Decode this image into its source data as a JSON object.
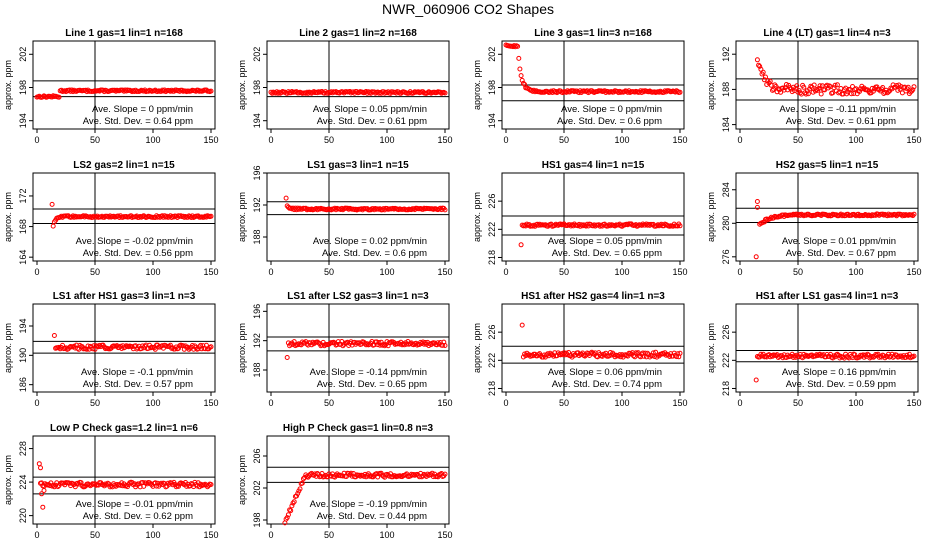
{
  "figure": {
    "title": "NWR_060906  CO2 Shapes"
  },
  "chart_data": [
    {
      "type": "scatter",
      "title": "Line 1 gas=1 lin=1 n=168",
      "ylabel": "approx. ppm",
      "xlim": [
        0,
        150
      ],
      "ylim": [
        193.0,
        203.6
      ],
      "xticks": [
        "0",
        "50",
        "100",
        "150"
      ],
      "yticks": [
        {
          "v": 194,
          "t": "194"
        },
        {
          "v": 198,
          "t": "198"
        },
        {
          "v": 202,
          "t": "202"
        }
      ],
      "hlines": [
        196.9,
        198.8
      ],
      "vline": 50,
      "shape": "step",
      "params": {
        "a": 196.9,
        "b": 197.6,
        "t0": 20,
        "noise": 0.1,
        "start": 0,
        "step": 1
      },
      "slope": "Ave. Slope =  0  ppm/min",
      "sd": "Ave. Std. Dev. =  0.64  ppm",
      "series": [
        {
          "color": "#ff0000"
        }
      ]
    },
    {
      "type": "scatter",
      "title": "Line 2 gas=1 lin=2 n=168",
      "ylabel": "approx. ppm",
      "xlim": [
        0,
        150
      ],
      "ylim": [
        193.0,
        203.6
      ],
      "xticks": [
        "0",
        "50",
        "100",
        "150"
      ],
      "yticks": [
        {
          "v": 194,
          "t": "194"
        },
        {
          "v": 198,
          "t": "198"
        },
        {
          "v": 202,
          "t": "202"
        }
      ],
      "hlines": [
        196.9,
        198.7
      ],
      "vline": 50,
      "shape": "flat",
      "params": {
        "a": 197.4,
        "noise": 0.12,
        "start": 0,
        "step": 1
      },
      "slope": "Ave. Slope =  0.05  ppm/min",
      "sd": "Ave. Std. Dev. =  0.61  ppm",
      "series": [
        {
          "color": "#ff0000"
        }
      ]
    },
    {
      "type": "scatter",
      "title": "Line 3 gas=1 lin=3 n=168",
      "ylabel": "approx. ppm",
      "xlim": [
        0,
        150
      ],
      "ylim": [
        193.0,
        203.6
      ],
      "xticks": [
        "0",
        "50",
        "100",
        "150"
      ],
      "yticks": [
        {
          "v": 194,
          "t": "194"
        },
        {
          "v": 198,
          "t": "198"
        },
        {
          "v": 202,
          "t": "202"
        }
      ],
      "hlines": [
        196.4,
        198.3
      ],
      "vline": 50,
      "shape": "decay",
      "params": {
        "a": 197.5,
        "b": 203.0,
        "t0": 10,
        "tau": 3,
        "noise": 0.12,
        "start": 0,
        "step": 1
      },
      "slope": "Ave. Slope =  0  ppm/min",
      "sd": "Ave. Std. Dev. =  0.6  ppm",
      "series": [
        {
          "color": "#ff0000"
        }
      ]
    },
    {
      "type": "scatter",
      "title": "Line 4 (LT) gas=1 lin=4 n=3",
      "ylabel": "approx. ppm",
      "xlim": [
        0,
        150
      ],
      "ylim": [
        183.5,
        193.5
      ],
      "xticks": [
        "0",
        "50",
        "100",
        "150"
      ],
      "yticks": [
        {
          "v": 184,
          "t": "184"
        },
        {
          "v": 188,
          "t": "188"
        },
        {
          "v": 192,
          "t": "192"
        }
      ],
      "hlines": [
        186.8,
        189.2
      ],
      "vline": 50,
      "shape": "decay",
      "params": {
        "a": 188.0,
        "b": 191.5,
        "t0": 15,
        "tau": 6,
        "noise": 0.55,
        "start": 15,
        "step": 1
      },
      "slope": "Ave. Slope = -0.11  ppm/min",
      "sd": "Ave. Std. Dev. =  0.61  ppm",
      "series": [
        {
          "color": "#ff0000"
        }
      ]
    },
    {
      "type": "scatter",
      "title": "LS2 gas=2 lin=1 n=15",
      "ylabel": "approx. ppm",
      "xlim": [
        0,
        150
      ],
      "ylim": [
        163.5,
        175.0
      ],
      "xticks": [
        "0",
        "50",
        "100",
        "150"
      ],
      "yticks": [
        {
          "v": 164,
          "t": "164"
        },
        {
          "v": 168,
          "t": "168"
        },
        {
          "v": 172,
          "t": "172"
        }
      ],
      "hlines": [
        168.4,
        170.3
      ],
      "vline": 50,
      "shape": "rise",
      "params": {
        "a": 169.3,
        "b": 168.0,
        "t0": 14,
        "tau": 2,
        "noise": 0.12,
        "start": 14,
        "step": 1,
        "first": 170.9
      },
      "slope": "Ave. Slope = -0.02  ppm/min",
      "sd": "Ave. Std. Dev. =  0.56  ppm",
      "series": [
        {
          "color": "#ff0000"
        }
      ]
    },
    {
      "type": "scatter",
      "title": "LS1 gas=3 lin=1 n=15",
      "ylabel": "approx. ppm",
      "xlim": [
        0,
        150
      ],
      "ylim": [
        185.0,
        196.0
      ],
      "xticks": [
        "0",
        "50",
        "100",
        "150"
      ],
      "yticks": [
        {
          "v": 188,
          "t": "188"
        },
        {
          "v": 192,
          "t": "192"
        },
        {
          "v": 196,
          "t": "196"
        }
      ],
      "hlines": [
        190.8,
        192.4
      ],
      "vline": 50,
      "shape": "decay",
      "params": {
        "a": 191.5,
        "b": 196.2,
        "t0": 12,
        "tau": 0.8,
        "noise": 0.12,
        "start": 12,
        "step": 1
      },
      "slope": "Ave. Slope =  0.02  ppm/min",
      "sd": "Ave. Std. Dev. =  0.6  ppm",
      "series": [
        {
          "color": "#ff0000"
        }
      ]
    },
    {
      "type": "scatter",
      "title": "HS1 gas=4 lin=1 n=15",
      "ylabel": "approx. ppm",
      "xlim": [
        0,
        150
      ],
      "ylim": [
        217.5,
        230.0
      ],
      "xticks": [
        "0",
        "50",
        "100",
        "150"
      ],
      "yticks": [
        {
          "v": 218,
          "t": "218"
        },
        {
          "v": 222,
          "t": "222"
        },
        {
          "v": 226,
          "t": "226"
        }
      ],
      "hlines": [
        221.2,
        223.9
      ],
      "vline": 50,
      "shape": "flat",
      "params": {
        "a": 222.6,
        "noise": 0.18,
        "start": 14,
        "step": 1,
        "first": 219.8
      },
      "slope": "Ave. Slope =  0.05  ppm/min",
      "sd": "Ave. Std. Dev. =  0.65  ppm",
      "series": [
        {
          "color": "#ff0000"
        }
      ]
    },
    {
      "type": "scatter",
      "title": "HS2 gas=5 lin=1 n=15",
      "ylabel": "approx. ppm",
      "xlim": [
        0,
        150
      ],
      "ylim": [
        275.5,
        286.0
      ],
      "xticks": [
        "0",
        "50",
        "100",
        "150"
      ],
      "yticks": [
        {
          "v": 276,
          "t": "276"
        },
        {
          "v": 280,
          "t": "280"
        },
        {
          "v": 284,
          "t": "284"
        }
      ],
      "hlines": [
        280.1,
        281.8
      ],
      "vline": 50,
      "shape": "rise",
      "params": {
        "a": 281.0,
        "b": 279.8,
        "t0": 17,
        "tau": 8,
        "noise": 0.12,
        "start": 17,
        "step": 1,
        "extra": [
          [
            14,
            276.0
          ],
          [
            15,
            282.6
          ],
          [
            15,
            281.9
          ]
        ]
      },
      "slope": "Ave. Slope =  0.01  ppm/min",
      "sd": "Ave. Std. Dev. =  0.67  ppm",
      "series": [
        {
          "color": "#ff0000"
        }
      ]
    },
    {
      "type": "scatter",
      "title": "LS1 after HS1 gas=3 lin=1 n=3",
      "ylabel": "approx. ppm",
      "xlim": [
        0,
        150
      ],
      "ylim": [
        185.0,
        197.0
      ],
      "xticks": [
        "0",
        "50",
        "100",
        "150"
      ],
      "yticks": [
        {
          "v": 186,
          "t": "186"
        },
        {
          "v": 190,
          "t": "190"
        },
        {
          "v": 194,
          "t": "194"
        }
      ],
      "hlines": [
        190.3,
        191.9
      ],
      "vline": 50,
      "shape": "flat",
      "params": {
        "a": 191.1,
        "noise": 0.3,
        "start": 16,
        "step": 1,
        "first": 192.7
      },
      "slope": "Ave. Slope = -0.1  ppm/min",
      "sd": "Ave. Std. Dev. =  0.57  ppm",
      "series": [
        {
          "color": "#ff0000"
        }
      ]
    },
    {
      "type": "scatter",
      "title": "LS1 after LS2 gas=3 lin=1 n=3",
      "ylabel": "approx. ppm",
      "xlim": [
        0,
        150
      ],
      "ylim": [
        185.0,
        197.0
      ],
      "xticks": [
        "0",
        "50",
        "100",
        "150"
      ],
      "yticks": [
        {
          "v": 188,
          "t": "188"
        },
        {
          "v": 192,
          "t": "192"
        },
        {
          "v": 196,
          "t": "196"
        }
      ],
      "hlines": [
        190.6,
        192.5
      ],
      "vline": 50,
      "shape": "flat",
      "params": {
        "a": 191.6,
        "noise": 0.3,
        "start": 15,
        "step": 1,
        "first": 189.7
      },
      "slope": "Ave. Slope = -0.14  ppm/min",
      "sd": "Ave. Std. Dev. =  0.65  ppm",
      "series": [
        {
          "color": "#ff0000"
        }
      ]
    },
    {
      "type": "scatter",
      "title": "HS1 after HS2 gas=4 lin=1 n=3",
      "ylabel": "approx. ppm",
      "xlim": [
        0,
        150
      ],
      "ylim": [
        217.5,
        230.0
      ],
      "xticks": [
        "0",
        "50",
        "100",
        "150"
      ],
      "yticks": [
        {
          "v": 218,
          "t": "218"
        },
        {
          "v": 222,
          "t": "222"
        },
        {
          "v": 226,
          "t": "226"
        }
      ],
      "hlines": [
        221.6,
        224.0
      ],
      "vline": 50,
      "shape": "flat",
      "params": {
        "a": 222.8,
        "noise": 0.35,
        "start": 15,
        "step": 1,
        "first": 227.0
      },
      "slope": "Ave. Slope =  0.06  ppm/min",
      "sd": "Ave. Std. Dev. =  0.74  ppm",
      "series": [
        {
          "color": "#ff0000"
        }
      ]
    },
    {
      "type": "scatter",
      "title": "HS1 after LS1 gas=4 lin=1 n=3",
      "ylabel": "approx. ppm",
      "xlim": [
        0,
        150
      ],
      "ylim": [
        217.5,
        230.0
      ],
      "xticks": [
        "0",
        "50",
        "100",
        "150"
      ],
      "yticks": [
        {
          "v": 218,
          "t": "218"
        },
        {
          "v": 222,
          "t": "222"
        },
        {
          "v": 226,
          "t": "226"
        }
      ],
      "hlines": [
        221.8,
        223.4
      ],
      "vline": 50,
      "shape": "flat",
      "params": {
        "a": 222.6,
        "noise": 0.28,
        "start": 15,
        "step": 1,
        "first": 219.2
      },
      "slope": "Ave. Slope =  0.16  ppm/min",
      "sd": "Ave. Std. Dev. =  0.59  ppm",
      "series": [
        {
          "color": "#ff0000"
        }
      ]
    },
    {
      "type": "scatter",
      "title": "Low P Check gas=1.2 lin=1 n=6",
      "ylabel": "approx. ppm",
      "xlim": [
        0,
        150
      ],
      "ylim": [
        219.0,
        229.5
      ],
      "xticks": [
        "0",
        "50",
        "100",
        "150"
      ],
      "yticks": [
        {
          "v": 220,
          "t": "220"
        },
        {
          "v": 224,
          "t": "224"
        },
        {
          "v": 228,
          "t": "228"
        }
      ],
      "hlines": [
        222.6,
        224.6
      ],
      "vline": 50,
      "shape": "flat",
      "params": {
        "a": 223.7,
        "noise": 0.28,
        "start": 3,
        "step": 1,
        "extra": [
          [
            2,
            226.2
          ],
          [
            3,
            225.7
          ],
          [
            5,
            221.0
          ],
          [
            4,
            222.6
          ],
          [
            6,
            223.0
          ]
        ]
      },
      "slope": "Ave. Slope = -0.01  ppm/min",
      "sd": "Ave. Std. Dev. =  0.62  ppm",
      "series": [
        {
          "color": "#ff0000"
        }
      ]
    },
    {
      "type": "scatter",
      "title": "High P Check gas=1 lin=0.8 n=3",
      "ylabel": "approx. ppm",
      "xlim": [
        0,
        150
      ],
      "ylim": [
        197.5,
        208.5
      ],
      "xticks": [
        "0",
        "50",
        "100",
        "150"
      ],
      "yticks": [
        {
          "v": 198,
          "t": "198"
        },
        {
          "v": 202,
          "t": "202"
        },
        {
          "v": 206,
          "t": "206"
        }
      ],
      "hlines": [
        202.7,
        204.6
      ],
      "vline": 50,
      "shape": "ramp",
      "params": {
        "a": 203.6,
        "b": 197.8,
        "t0": 12,
        "t1": 30,
        "noise": 0.25,
        "start": 12,
        "step": 1
      },
      "slope": "Ave. Slope = -0.19  ppm/min",
      "sd": "Ave. Std. Dev. =  0.44  ppm",
      "series": [
        {
          "color": "#ff0000"
        }
      ]
    }
  ]
}
